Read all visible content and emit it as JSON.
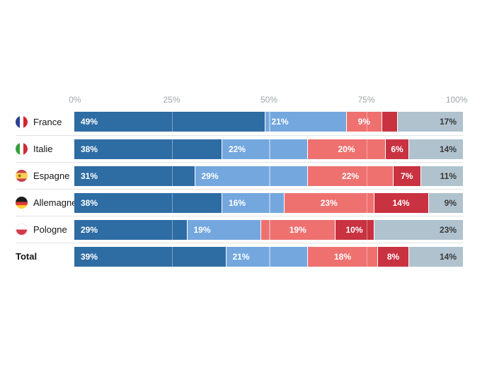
{
  "chart_data": {
    "type": "bar",
    "variant": "horizontal-stacked",
    "title": "",
    "legend": "none",
    "x_axis": {
      "ticks": [
        "0%",
        "25%",
        "50%",
        "75%",
        "100%"
      ],
      "range": [
        0,
        100
      ],
      "unit": "%"
    },
    "categories": [
      "France",
      "Italie",
      "Espagne",
      "Allemagne",
      "Pologne",
      "Total"
    ],
    "category_flags": [
      "france",
      "italie",
      "espagne",
      "allemagne",
      "pologne",
      null
    ],
    "series": [
      {
        "name": "dark-blue",
        "color": "#2E6CA4",
        "values": [
          49,
          38,
          31,
          38,
          29,
          39
        ]
      },
      {
        "name": "light-blue",
        "color": "#74A7DE",
        "values": [
          21,
          22,
          29,
          16,
          19,
          21
        ]
      },
      {
        "name": "light-red",
        "color": "#EE7170",
        "values": [
          9,
          20,
          22,
          23,
          19,
          18
        ]
      },
      {
        "name": "dark-red",
        "color": "#C93240",
        "values": [
          4,
          6,
          7,
          14,
          10,
          8
        ]
      },
      {
        "name": "gray",
        "color": "#AFC2CE",
        "values": [
          17,
          14,
          11,
          9,
          23,
          14
        ]
      }
    ],
    "data_labels": {
      "format": "{value}%",
      "min_value_shown": 6
    },
    "grid": {
      "lines_at": [
        25,
        50,
        75
      ],
      "style": "white-overlay"
    }
  }
}
